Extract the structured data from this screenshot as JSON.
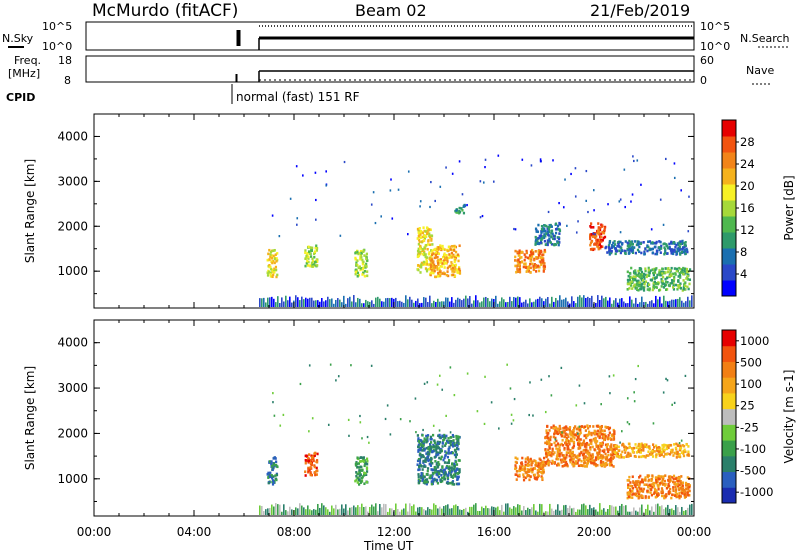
{
  "header": {
    "station": "McMurdo (fitACF)",
    "beam": "Beam 02",
    "date": "21/Feb/2019"
  },
  "status_panels": {
    "nsky": {
      "label": "N.Sky",
      "ticks": [
        "10^5",
        "10^0"
      ]
    },
    "nsearch": {
      "label": "N.Search",
      "ticks": [
        "10^5",
        "10^0"
      ]
    },
    "freq": {
      "label_line1": "Freq.",
      "label_line2": "[MHz]",
      "ticks": [
        "18",
        "8"
      ]
    },
    "nave": {
      "label": "Nave",
      "ticks": [
        "60",
        "0"
      ]
    },
    "cpid": {
      "label": "CPID",
      "value": "normal (fast) 151 RF"
    }
  },
  "x_axis": {
    "label": "Time UT",
    "ticks": [
      "00:00",
      "04:00",
      "08:00",
      "12:00",
      "16:00",
      "20:00",
      "00:00"
    ],
    "range_hours": [
      0,
      24
    ]
  },
  "chart_data": [
    {
      "type": "heatmap",
      "title": "Power",
      "ylabel": "Slant Range [km]",
      "ylim": [
        180,
        4500
      ],
      "yticks": [
        "1000",
        "2000",
        "3000",
        "4000"
      ],
      "colorbar": {
        "label": "Power [dB]",
        "ticks": [
          "4",
          "8",
          "12",
          "16",
          "20",
          "24",
          "28"
        ],
        "colors": [
          "#0000ff",
          "#2a48c8",
          "#1a6fb0",
          "#2e9a6a",
          "#4fb84f",
          "#a6d93a",
          "#f7f125",
          "#f5b21c",
          "#f28419",
          "#f25410",
          "#e60000"
        ]
      },
      "patches": [
        {
          "t0": 6.9,
          "t1": 7.3,
          "r0": 900,
          "r1": 1500,
          "level": 6
        },
        {
          "t0": 8.4,
          "t1": 8.9,
          "r0": 1100,
          "r1": 1600,
          "level": 5
        },
        {
          "t0": 10.4,
          "t1": 10.9,
          "r0": 900,
          "r1": 1500,
          "level": 5
        },
        {
          "t0": 12.9,
          "t1": 13.5,
          "r0": 1000,
          "r1": 2000,
          "level": 6
        },
        {
          "t0": 13.4,
          "t1": 14.6,
          "r0": 900,
          "r1": 1600,
          "level": 7
        },
        {
          "t0": 14.4,
          "t1": 14.8,
          "r0": 2300,
          "r1": 2500,
          "level": 3
        },
        {
          "t0": 16.8,
          "t1": 18.0,
          "r0": 1000,
          "r1": 1500,
          "level": 8
        },
        {
          "t0": 17.6,
          "t1": 18.6,
          "r0": 1600,
          "r1": 2100,
          "level": 2
        },
        {
          "t0": 19.8,
          "t1": 20.4,
          "r0": 1500,
          "r1": 2100,
          "level": 9
        },
        {
          "t0": 20.4,
          "t1": 23.7,
          "r0": 1400,
          "r1": 1700,
          "level": 2
        },
        {
          "t0": 21.3,
          "t1": 23.8,
          "r0": 600,
          "r1": 1100,
          "level": 4
        }
      ]
    },
    {
      "type": "heatmap",
      "title": "Velocity",
      "ylabel": "Slant Range [km]",
      "ylim": [
        180,
        4500
      ],
      "yticks": [
        "1000",
        "2000",
        "3000",
        "4000"
      ],
      "colorbar": {
        "label": "Velocity [m s-1]",
        "ticks": [
          "1000",
          "500",
          "100",
          "25",
          "-25",
          "-100",
          "-500",
          "-1000"
        ],
        "colors": [
          "#1a2cb0",
          "#2a5fbf",
          "#2a7f6a",
          "#3aa04a",
          "#6fcc3a",
          "#bdbdbd",
          "#f7d21c",
          "#f5a51a",
          "#f27f14",
          "#f2540e",
          "#e60000"
        ]
      },
      "patches": [
        {
          "t0": 6.9,
          "t1": 7.3,
          "r0": 900,
          "r1": 1500,
          "level": 2
        },
        {
          "t0": 8.4,
          "t1": 8.9,
          "r0": 1100,
          "r1": 1600,
          "level": 9
        },
        {
          "t0": 10.4,
          "t1": 10.9,
          "r0": 900,
          "r1": 1500,
          "level": 3
        },
        {
          "t0": 12.9,
          "t1": 14.6,
          "r0": 900,
          "r1": 2000,
          "level": 2
        },
        {
          "t0": 16.8,
          "t1": 18.0,
          "r0": 1000,
          "r1": 1500,
          "level": 8
        },
        {
          "t0": 18.0,
          "t1": 20.8,
          "r0": 1300,
          "r1": 2200,
          "level": 8
        },
        {
          "t0": 20.8,
          "t1": 23.8,
          "r0": 1500,
          "r1": 1800,
          "level": 7
        },
        {
          "t0": 21.3,
          "t1": 23.8,
          "r0": 600,
          "r1": 1100,
          "level": 8
        }
      ]
    }
  ]
}
